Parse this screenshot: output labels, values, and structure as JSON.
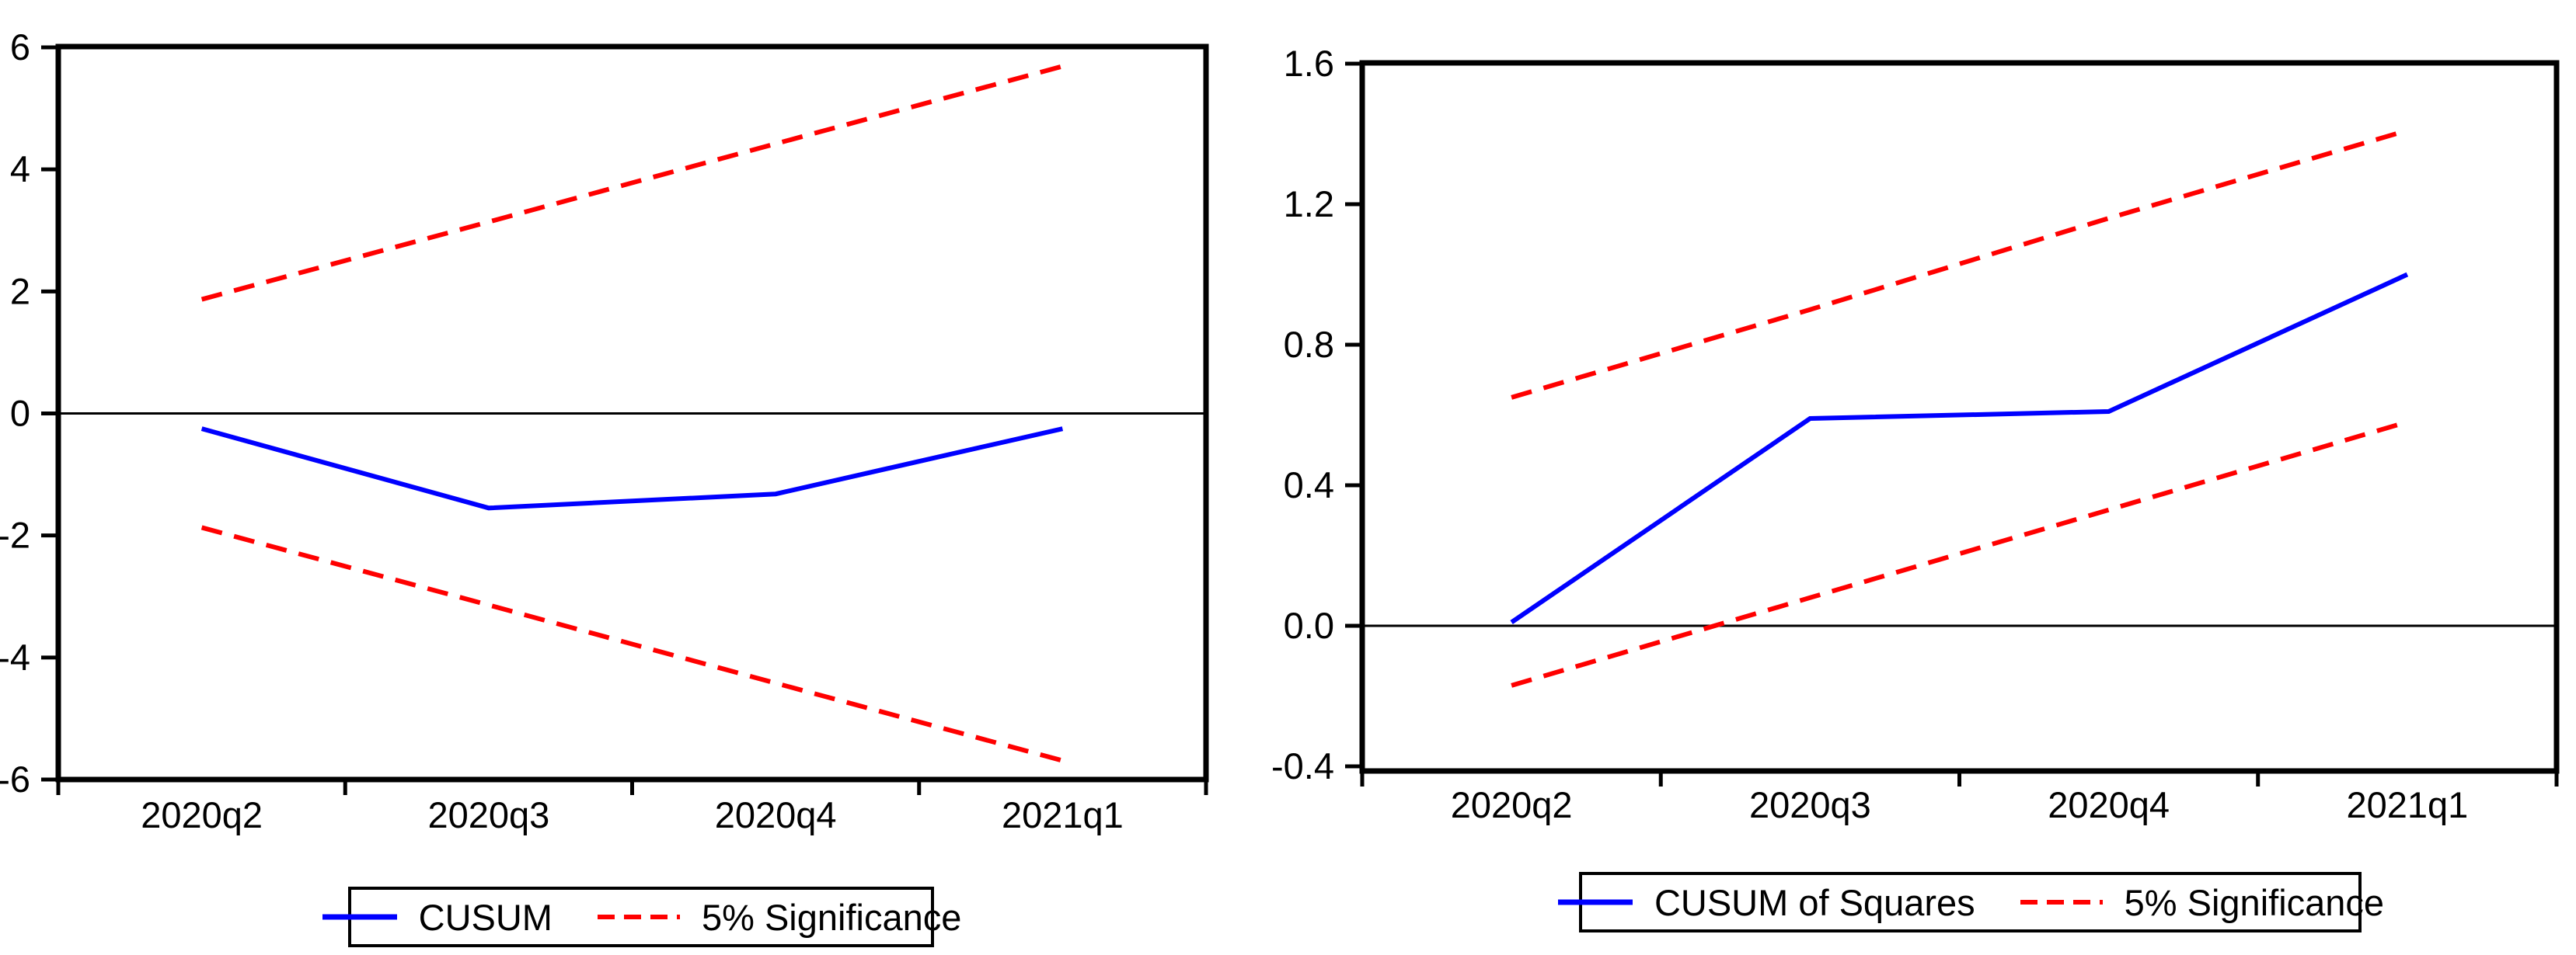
{
  "page": {
    "background": "#ffffff",
    "text_color": "#000000"
  },
  "chart_data": [
    {
      "type": "line",
      "title": "",
      "xlabel": "",
      "ylabel": "",
      "categories": [
        "2020q2",
        "2020q3",
        "2020q4",
        "2021q1"
      ],
      "y_tick_labels": [
        "6",
        "4",
        "2",
        "0",
        "-2",
        "-4",
        "-6"
      ],
      "y_tick_values": [
        6,
        4,
        2,
        0,
        -2,
        -4,
        -6
      ],
      "ylim": [
        -6,
        6
      ],
      "grid": false,
      "zero_line": true,
      "legend_position": "bottom",
      "series": [
        {
          "name": "CUSUM",
          "role": "statistic",
          "color": "#0000ff",
          "style": "solid",
          "values": [
            -0.25,
            -1.55,
            -1.32,
            -0.25
          ]
        },
        {
          "name": "5% Significance",
          "role": "upper-bound",
          "color": "#ff0000",
          "style": "dashed",
          "values": [
            1.87,
            3.14,
            4.42,
            5.69
          ]
        },
        {
          "name": "5% Significance",
          "role": "lower-bound",
          "color": "#ff0000",
          "style": "dashed",
          "values": [
            -1.87,
            -3.14,
            -4.42,
            -5.69
          ]
        }
      ],
      "legend": [
        {
          "label": "CUSUM",
          "color": "#0000ff",
          "style": "solid"
        },
        {
          "label": "5% Significance",
          "color": "#ff0000",
          "style": "dashed"
        }
      ]
    },
    {
      "type": "line",
      "title": "",
      "xlabel": "",
      "ylabel": "",
      "categories": [
        "2020q2",
        "2020q3",
        "2020q4",
        "2021q1"
      ],
      "y_tick_labels": [
        "1.6",
        "1.2",
        "0.8",
        "0.4",
        "0.0",
        "-0.4"
      ],
      "y_tick_values": [
        1.6,
        1.2,
        0.8,
        0.4,
        0.0,
        -0.4
      ],
      "ylim": [
        -0.413,
        1.6
      ],
      "grid": false,
      "zero_line": true,
      "legend_position": "bottom",
      "series": [
        {
          "name": "CUSUM of Squares",
          "role": "statistic",
          "color": "#0000ff",
          "style": "solid",
          "values": [
            0.01,
            0.59,
            0.61,
            1.0
          ]
        },
        {
          "name": "5% Significance",
          "role": "upper-bound",
          "color": "#ff0000",
          "style": "dashed",
          "values": [
            0.65,
            0.9,
            1.16,
            1.41
          ]
        },
        {
          "name": "5% Significance",
          "role": "lower-bound",
          "color": "#ff0000",
          "style": "dashed",
          "values": [
            -0.17,
            0.08,
            0.33,
            0.58
          ]
        }
      ],
      "legend": [
        {
          "label": "CUSUM of Squares",
          "color": "#0000ff",
          "style": "solid"
        },
        {
          "label": "5% Significance",
          "color": "#ff0000",
          "style": "dashed"
        }
      ]
    }
  ]
}
